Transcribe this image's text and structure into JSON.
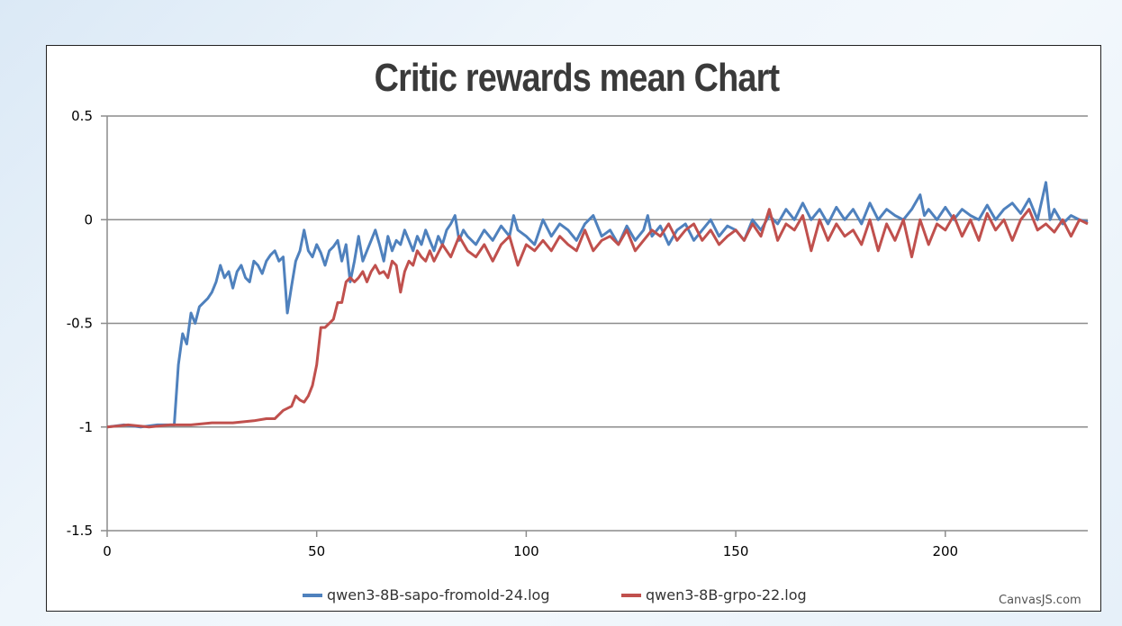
{
  "chart_data": {
    "type": "line",
    "title": "Critic rewards mean Chart",
    "xlabel": "",
    "ylabel": "",
    "xlim": [
      0,
      234
    ],
    "ylim": [
      -1.5,
      0.5
    ],
    "x_ticks": [
      "0",
      "50",
      "100",
      "150",
      "200"
    ],
    "y_ticks": [
      "0.5",
      "0",
      "-0.5",
      "-1",
      "-1.5"
    ],
    "grid": "horizontal",
    "legend_placement": "bottom",
    "series": [
      {
        "name": "qwen3-8B-sapo-fromold-24.log",
        "color": "#4f81bd",
        "points": [
          [
            0,
            -1
          ],
          [
            4,
            -0.99
          ],
          [
            8,
            -1
          ],
          [
            12,
            -0.99
          ],
          [
            16,
            -0.99
          ],
          [
            17,
            -0.7
          ],
          [
            18,
            -0.55
          ],
          [
            19,
            -0.6
          ],
          [
            20,
            -0.45
          ],
          [
            21,
            -0.5
          ],
          [
            22,
            -0.42
          ],
          [
            24,
            -0.38
          ],
          [
            25,
            -0.35
          ],
          [
            26,
            -0.3
          ],
          [
            27,
            -0.22
          ],
          [
            28,
            -0.28
          ],
          [
            29,
            -0.25
          ],
          [
            30,
            -0.33
          ],
          [
            31,
            -0.25
          ],
          [
            32,
            -0.22
          ],
          [
            33,
            -0.28
          ],
          [
            34,
            -0.3
          ],
          [
            35,
            -0.2
          ],
          [
            36,
            -0.22
          ],
          [
            37,
            -0.26
          ],
          [
            38,
            -0.2
          ],
          [
            39,
            -0.17
          ],
          [
            40,
            -0.15
          ],
          [
            41,
            -0.2
          ],
          [
            42,
            -0.18
          ],
          [
            43,
            -0.45
          ],
          [
            44,
            -0.32
          ],
          [
            45,
            -0.2
          ],
          [
            46,
            -0.15
          ],
          [
            47,
            -0.05
          ],
          [
            48,
            -0.15
          ],
          [
            49,
            -0.18
          ],
          [
            50,
            -0.12
          ],
          [
            51,
            -0.16
          ],
          [
            52,
            -0.22
          ],
          [
            53,
            -0.15
          ],
          [
            54,
            -0.13
          ],
          [
            55,
            -0.1
          ],
          [
            56,
            -0.2
          ],
          [
            57,
            -0.12
          ],
          [
            58,
            -0.3
          ],
          [
            59,
            -0.2
          ],
          [
            60,
            -0.08
          ],
          [
            61,
            -0.2
          ],
          [
            62,
            -0.15
          ],
          [
            63,
            -0.1
          ],
          [
            64,
            -0.05
          ],
          [
            65,
            -0.12
          ],
          [
            66,
            -0.2
          ],
          [
            67,
            -0.08
          ],
          [
            68,
            -0.15
          ],
          [
            69,
            -0.1
          ],
          [
            70,
            -0.12
          ],
          [
            71,
            -0.05
          ],
          [
            72,
            -0.1
          ],
          [
            73,
            -0.15
          ],
          [
            74,
            -0.08
          ],
          [
            75,
            -0.12
          ],
          [
            76,
            -0.05
          ],
          [
            77,
            -0.1
          ],
          [
            78,
            -0.15
          ],
          [
            79,
            -0.08
          ],
          [
            80,
            -0.12
          ],
          [
            81,
            -0.05
          ],
          [
            82,
            -0.02
          ],
          [
            83,
            0.02
          ],
          [
            84,
            -0.1
          ],
          [
            85,
            -0.05
          ],
          [
            86,
            -0.08
          ],
          [
            88,
            -0.12
          ],
          [
            90,
            -0.05
          ],
          [
            92,
            -0.1
          ],
          [
            94,
            -0.03
          ],
          [
            96,
            -0.08
          ],
          [
            97,
            0.02
          ],
          [
            98,
            -0.05
          ],
          [
            100,
            -0.08
          ],
          [
            102,
            -0.12
          ],
          [
            104,
            0.0
          ],
          [
            106,
            -0.08
          ],
          [
            108,
            -0.02
          ],
          [
            110,
            -0.05
          ],
          [
            112,
            -0.1
          ],
          [
            114,
            -0.02
          ],
          [
            116,
            0.02
          ],
          [
            118,
            -0.08
          ],
          [
            120,
            -0.05
          ],
          [
            122,
            -0.12
          ],
          [
            124,
            -0.03
          ],
          [
            126,
            -0.1
          ],
          [
            128,
            -0.05
          ],
          [
            129,
            0.02
          ],
          [
            130,
            -0.08
          ],
          [
            132,
            -0.03
          ],
          [
            134,
            -0.12
          ],
          [
            136,
            -0.05
          ],
          [
            138,
            -0.02
          ],
          [
            140,
            -0.1
          ],
          [
            142,
            -0.05
          ],
          [
            144,
            0.0
          ],
          [
            146,
            -0.08
          ],
          [
            148,
            -0.03
          ],
          [
            150,
            -0.05
          ],
          [
            152,
            -0.1
          ],
          [
            154,
            0.0
          ],
          [
            156,
            -0.05
          ],
          [
            158,
            0.02
          ],
          [
            160,
            -0.02
          ],
          [
            162,
            0.05
          ],
          [
            164,
            0.0
          ],
          [
            166,
            0.08
          ],
          [
            168,
            0.0
          ],
          [
            170,
            0.05
          ],
          [
            172,
            -0.02
          ],
          [
            174,
            0.06
          ],
          [
            176,
            0.0
          ],
          [
            178,
            0.05
          ],
          [
            180,
            -0.02
          ],
          [
            182,
            0.08
          ],
          [
            184,
            0.0
          ],
          [
            186,
            0.05
          ],
          [
            188,
            0.02
          ],
          [
            190,
            0.0
          ],
          [
            192,
            0.05
          ],
          [
            194,
            0.12
          ],
          [
            195,
            0.02
          ],
          [
            196,
            0.05
          ],
          [
            198,
            0.0
          ],
          [
            200,
            0.06
          ],
          [
            202,
            0.0
          ],
          [
            204,
            0.05
          ],
          [
            206,
            0.02
          ],
          [
            208,
            0.0
          ],
          [
            210,
            0.07
          ],
          [
            212,
            0.0
          ],
          [
            214,
            0.05
          ],
          [
            216,
            0.08
          ],
          [
            218,
            0.03
          ],
          [
            220,
            0.1
          ],
          [
            222,
            0.0
          ],
          [
            224,
            0.18
          ],
          [
            225,
            0.0
          ],
          [
            226,
            0.05
          ],
          [
            228,
            -0.02
          ],
          [
            230,
            0.02
          ],
          [
            232,
            0.0
          ],
          [
            234,
            -0.01
          ]
        ]
      },
      {
        "name": "qwen3-8B-grpo-22.log",
        "color": "#c0504d",
        "points": [
          [
            0,
            -1
          ],
          [
            5,
            -0.99
          ],
          [
            10,
            -1
          ],
          [
            15,
            -0.99
          ],
          [
            20,
            -0.99
          ],
          [
            25,
            -0.98
          ],
          [
            30,
            -0.98
          ],
          [
            35,
            -0.97
          ],
          [
            38,
            -0.96
          ],
          [
            40,
            -0.96
          ],
          [
            42,
            -0.92
          ],
          [
            44,
            -0.9
          ],
          [
            45,
            -0.85
          ],
          [
            46,
            -0.87
          ],
          [
            47,
            -0.88
          ],
          [
            48,
            -0.85
          ],
          [
            49,
            -0.8
          ],
          [
            50,
            -0.7
          ],
          [
            51,
            -0.52
          ],
          [
            52,
            -0.52
          ],
          [
            53,
            -0.5
          ],
          [
            54,
            -0.48
          ],
          [
            55,
            -0.4
          ],
          [
            56,
            -0.4
          ],
          [
            57,
            -0.3
          ],
          [
            58,
            -0.28
          ],
          [
            59,
            -0.3
          ],
          [
            60,
            -0.28
          ],
          [
            61,
            -0.25
          ],
          [
            62,
            -0.3
          ],
          [
            63,
            -0.25
          ],
          [
            64,
            -0.22
          ],
          [
            65,
            -0.26
          ],
          [
            66,
            -0.25
          ],
          [
            67,
            -0.28
          ],
          [
            68,
            -0.2
          ],
          [
            69,
            -0.22
          ],
          [
            70,
            -0.35
          ],
          [
            71,
            -0.25
          ],
          [
            72,
            -0.2
          ],
          [
            73,
            -0.22
          ],
          [
            74,
            -0.15
          ],
          [
            75,
            -0.18
          ],
          [
            76,
            -0.2
          ],
          [
            77,
            -0.15
          ],
          [
            78,
            -0.2
          ],
          [
            80,
            -0.12
          ],
          [
            82,
            -0.18
          ],
          [
            84,
            -0.08
          ],
          [
            86,
            -0.15
          ],
          [
            88,
            -0.18
          ],
          [
            90,
            -0.12
          ],
          [
            92,
            -0.2
          ],
          [
            94,
            -0.12
          ],
          [
            96,
            -0.08
          ],
          [
            98,
            -0.22
          ],
          [
            100,
            -0.12
          ],
          [
            102,
            -0.15
          ],
          [
            104,
            -0.1
          ],
          [
            106,
            -0.15
          ],
          [
            108,
            -0.08
          ],
          [
            110,
            -0.12
          ],
          [
            112,
            -0.15
          ],
          [
            114,
            -0.05
          ],
          [
            116,
            -0.15
          ],
          [
            118,
            -0.1
          ],
          [
            120,
            -0.08
          ],
          [
            122,
            -0.12
          ],
          [
            124,
            -0.05
          ],
          [
            126,
            -0.15
          ],
          [
            128,
            -0.1
          ],
          [
            130,
            -0.05
          ],
          [
            132,
            -0.08
          ],
          [
            134,
            -0.02
          ],
          [
            136,
            -0.1
          ],
          [
            138,
            -0.05
          ],
          [
            140,
            -0.02
          ],
          [
            142,
            -0.1
          ],
          [
            144,
            -0.05
          ],
          [
            146,
            -0.12
          ],
          [
            148,
            -0.08
          ],
          [
            150,
            -0.05
          ],
          [
            152,
            -0.1
          ],
          [
            154,
            -0.02
          ],
          [
            156,
            -0.08
          ],
          [
            158,
            0.05
          ],
          [
            160,
            -0.1
          ],
          [
            162,
            -0.02
          ],
          [
            164,
            -0.05
          ],
          [
            166,
            0.02
          ],
          [
            168,
            -0.15
          ],
          [
            170,
            0.0
          ],
          [
            172,
            -0.1
          ],
          [
            174,
            -0.02
          ],
          [
            176,
            -0.08
          ],
          [
            178,
            -0.05
          ],
          [
            180,
            -0.12
          ],
          [
            182,
            0.0
          ],
          [
            184,
            -0.15
          ],
          [
            186,
            -0.02
          ],
          [
            188,
            -0.1
          ],
          [
            190,
            0.0
          ],
          [
            192,
            -0.18
          ],
          [
            194,
            0.0
          ],
          [
            196,
            -0.12
          ],
          [
            198,
            -0.02
          ],
          [
            200,
            -0.05
          ],
          [
            202,
            0.02
          ],
          [
            204,
            -0.08
          ],
          [
            206,
            0.0
          ],
          [
            208,
            -0.1
          ],
          [
            210,
            0.03
          ],
          [
            212,
            -0.05
          ],
          [
            214,
            0.0
          ],
          [
            216,
            -0.1
          ],
          [
            218,
            0.0
          ],
          [
            220,
            0.05
          ],
          [
            222,
            -0.05
          ],
          [
            224,
            -0.02
          ],
          [
            226,
            -0.06
          ],
          [
            228,
            0.0
          ],
          [
            230,
            -0.08
          ],
          [
            232,
            0.0
          ],
          [
            234,
            -0.02
          ]
        ]
      }
    ]
  },
  "credit_text": "CanvasJS.com"
}
